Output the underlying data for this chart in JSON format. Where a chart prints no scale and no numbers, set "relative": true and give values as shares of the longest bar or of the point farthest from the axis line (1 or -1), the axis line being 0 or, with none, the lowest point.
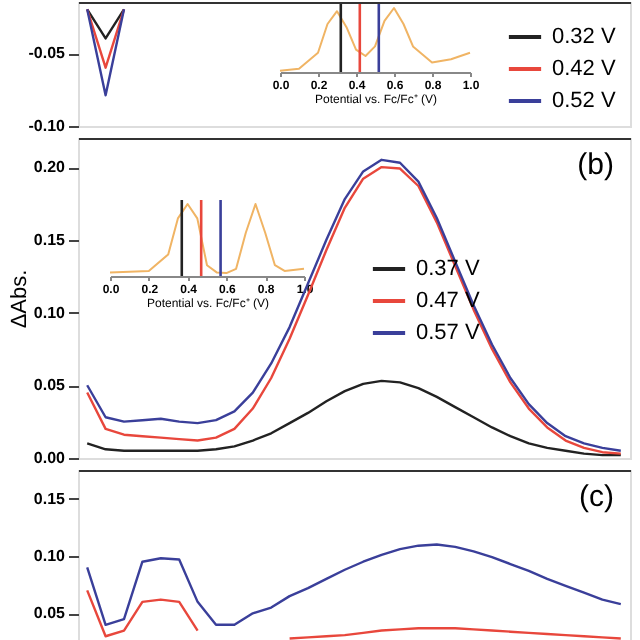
{
  "chart_data": [
    {
      "type": "line",
      "categories": [
        null,
        null,
        null,
        null,
        null,
        null,
        null,
        null,
        null,
        null,
        null,
        null,
        null,
        null,
        null,
        null,
        null,
        null,
        null,
        null,
        null,
        null,
        null,
        null,
        null,
        null,
        null,
        null,
        null,
        null
      ],
      "ylim": [
        -0.1,
        -0.015
      ],
      "yticks": [
        {
          "value": -0.1,
          "label": "-0.10"
        },
        {
          "value": -0.05,
          "label": "-0.05"
        }
      ],
      "tick_labels": "y",
      "legend": "bottom right",
      "grid": false,
      "series": [
        {
          "name": "0.32 V",
          "color": "#222222",
          "values": [
            -0.02,
            -0.04,
            -0.02,
            null,
            null,
            null,
            null,
            null,
            null,
            null,
            null,
            null,
            null,
            null,
            null,
            null,
            null,
            null,
            null,
            null,
            null,
            null,
            null,
            null,
            null,
            null,
            null,
            null,
            null,
            null
          ]
        },
        {
          "name": "0.42 V",
          "color": "#e8473c",
          "values": [
            -0.02,
            -0.06,
            -0.02,
            null,
            null,
            null,
            null,
            null,
            null,
            null,
            null,
            null,
            null,
            null,
            null,
            null,
            null,
            null,
            null,
            null,
            null,
            null,
            null,
            null,
            null,
            null,
            null,
            null,
            null,
            null
          ]
        },
        {
          "name": "0.52 V",
          "color": "#3a3f9a",
          "values": [
            -0.02,
            -0.079,
            -0.02,
            null,
            null,
            null,
            null,
            null,
            null,
            null,
            null,
            null,
            null,
            null,
            null,
            null,
            null,
            null,
            null,
            null,
            null,
            null,
            null,
            null,
            null,
            null,
            null,
            null,
            null,
            null
          ]
        }
      ]
    },
    {
      "type": "line",
      "relative": true,
      "xlim": [
        0.0,
        1.0
      ],
      "xticks": [
        {
          "value": 0.0,
          "label": "0.0"
        },
        {
          "value": 0.2,
          "label": "0.2"
        },
        {
          "value": 0.4,
          "label": "0.4"
        },
        {
          "value": 0.6,
          "label": "0.6"
        },
        {
          "value": 0.8,
          "label": "0.8"
        },
        {
          "value": 1.0,
          "label": "1.0"
        }
      ],
      "xlabel": "Potential vs. Fc/Fc⁺ (V)",
      "tick_labels": "x",
      "series": [
        {
          "color": "#f0b464",
          "x": [
            0,
            0.1,
            0.2,
            0.25,
            0.3,
            0.35,
            0.4,
            0.45,
            0.5,
            0.55,
            0.6,
            0.65,
            0.7,
            0.8,
            0.9,
            1.0
          ],
          "values": [
            0.02,
            0.05,
            0.3,
            0.75,
            0.95,
            0.7,
            0.35,
            0.25,
            0.4,
            0.8,
            1.0,
            0.75,
            0.4,
            0.15,
            0.2,
            0.3
          ]
        }
      ],
      "ref_lines": [
        {
          "axis": "x",
          "value": 0.32,
          "color": "#222222"
        },
        {
          "axis": "x",
          "value": 0.42,
          "color": "#e8473c"
        },
        {
          "axis": "x",
          "value": 0.52,
          "color": "#3a3f9a"
        }
      ]
    },
    {
      "type": "line",
      "categories": [
        null,
        null,
        null,
        null,
        null,
        null,
        null,
        null,
        null,
        null,
        null,
        null,
        null,
        null,
        null,
        null,
        null,
        null,
        null,
        null,
        null,
        null,
        null,
        null,
        null,
        null,
        null,
        null,
        null,
        null
      ],
      "ylabel": "ΔAbs.",
      "ylim": [
        0.0,
        0.22
      ],
      "yticks": [
        {
          "value": 0.0,
          "label": "0.00"
        },
        {
          "value": 0.05,
          "label": "0.05"
        },
        {
          "value": 0.1,
          "label": "0.10"
        },
        {
          "value": 0.15,
          "label": "0.15"
        },
        {
          "value": 0.2,
          "label": "0.20"
        }
      ],
      "tick_labels": "y",
      "legend": "right",
      "grid": false,
      "annotations": [
        "(b)"
      ],
      "series": [
        {
          "name": "0.37 V",
          "color": "#222222",
          "values": [
            0.01,
            0.006,
            0.005,
            0.005,
            0.005,
            0.005,
            0.005,
            0.006,
            0.008,
            0.012,
            0.017,
            0.024,
            0.031,
            0.039,
            0.046,
            0.051,
            0.053,
            0.052,
            0.048,
            0.042,
            0.035,
            0.028,
            0.021,
            0.015,
            0.01,
            0.007,
            0.005,
            0.003,
            0.002,
            0.002
          ]
        },
        {
          "name": "0.47 V",
          "color": "#e8473c",
          "values": [
            0.045,
            0.02,
            0.016,
            0.015,
            0.014,
            0.013,
            0.012,
            0.014,
            0.02,
            0.034,
            0.055,
            0.082,
            0.112,
            0.143,
            0.172,
            0.192,
            0.2,
            0.199,
            0.187,
            0.162,
            0.132,
            0.102,
            0.075,
            0.052,
            0.034,
            0.021,
            0.012,
            0.007,
            0.004,
            0.003
          ]
        },
        {
          "name": "0.57 V",
          "color": "#3a3f9a",
          "values": [
            0.05,
            0.028,
            0.025,
            0.026,
            0.027,
            0.025,
            0.024,
            0.026,
            0.032,
            0.045,
            0.065,
            0.09,
            0.12,
            0.15,
            0.178,
            0.197,
            0.205,
            0.203,
            0.19,
            0.165,
            0.135,
            0.105,
            0.078,
            0.055,
            0.037,
            0.024,
            0.015,
            0.01,
            0.007,
            0.005
          ]
        }
      ]
    },
    {
      "type": "line",
      "relative": true,
      "xlim": [
        0.0,
        1.0
      ],
      "xticks": [
        {
          "value": 0.0,
          "label": "0.0"
        },
        {
          "value": 0.2,
          "label": "0.2"
        },
        {
          "value": 0.4,
          "label": "0.4"
        },
        {
          "value": 0.6,
          "label": "0.6"
        },
        {
          "value": 0.8,
          "label": "0.8"
        },
        {
          "value": 1.0,
          "label": "1.0"
        }
      ],
      "xlabel": "Potential vs. Fc/Fc⁺ (V)",
      "tick_labels": "x",
      "series": [
        {
          "color": "#f0b464",
          "x": [
            0,
            0.2,
            0.3,
            0.35,
            0.4,
            0.45,
            0.5,
            0.55,
            0.6,
            0.65,
            0.7,
            0.75,
            0.8,
            0.85,
            0.9,
            1.0
          ],
          "values": [
            0.05,
            0.07,
            0.3,
            0.8,
            1.0,
            0.8,
            0.15,
            0.05,
            0.04,
            0.1,
            0.6,
            1.0,
            0.6,
            0.15,
            0.07,
            0.1
          ]
        }
      ],
      "ref_lines": [
        {
          "axis": "x",
          "value": 0.37,
          "color": "#222222"
        },
        {
          "axis": "x",
          "value": 0.47,
          "color": "#e8473c"
        },
        {
          "axis": "x",
          "value": 0.57,
          "color": "#3a3f9a"
        }
      ]
    },
    {
      "type": "line",
      "categories": [
        null,
        null,
        null,
        null,
        null,
        null,
        null,
        null,
        null,
        null,
        null,
        null,
        null,
        null,
        null,
        null,
        null,
        null,
        null,
        null,
        null,
        null,
        null,
        null,
        null,
        null,
        null,
        null,
        null,
        null
      ],
      "ylim": [
        0.025,
        0.175
      ],
      "yticks": [
        {
          "value": 0.05,
          "label": "0.05"
        },
        {
          "value": 0.1,
          "label": "0.10"
        },
        {
          "value": 0.15,
          "label": "0.15"
        }
      ],
      "tick_labels": "y",
      "grid": false,
      "annotations": [
        "(c)"
      ],
      "series": [
        {
          "color": "#e8473c",
          "values": [
            0.07,
            0.03,
            0.035,
            0.06,
            0.062,
            0.06,
            0.035,
            null,
            null,
            null,
            null,
            0.028,
            0.029,
            0.03,
            0.031,
            0.033,
            0.035,
            0.036,
            0.037,
            0.037,
            0.037,
            0.036,
            0.035,
            0.034,
            0.033,
            0.032,
            0.031,
            0.03,
            0.029,
            0.028
          ]
        },
        {
          "color": "#3a3f9a",
          "values": [
            0.09,
            0.04,
            0.045,
            0.095,
            0.098,
            0.097,
            0.06,
            0.04,
            0.04,
            0.05,
            0.055,
            0.065,
            0.072,
            0.08,
            0.088,
            0.095,
            0.101,
            0.106,
            0.109,
            0.11,
            0.108,
            0.104,
            0.099,
            0.093,
            0.087,
            0.08,
            0.074,
            0.068,
            0.062,
            0.058
          ]
        }
      ]
    }
  ]
}
